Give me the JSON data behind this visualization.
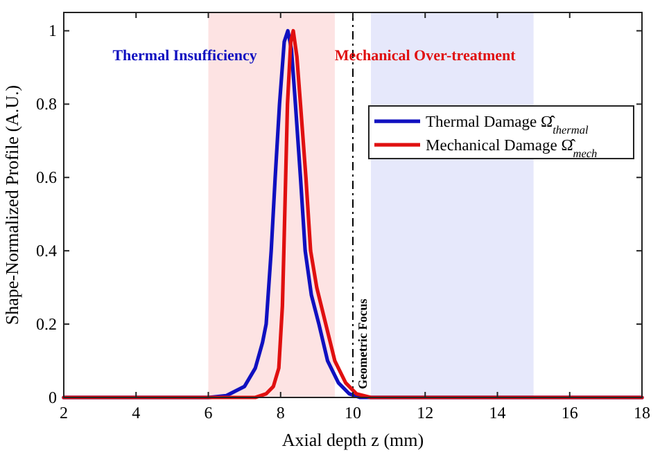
{
  "chart_data": {
    "type": "line",
    "xlabel": "Axial depth z (mm)",
    "ylabel": "Shape-Normalized Profile (A.U.)",
    "xlim": [
      2,
      18
    ],
    "ylim": [
      0,
      1.05
    ],
    "xticks": [
      2,
      4,
      6,
      8,
      10,
      12,
      14,
      16,
      18
    ],
    "yticks": [
      0,
      0.2,
      0.4,
      0.6,
      0.8,
      1
    ],
    "grid": false,
    "legend": "top right",
    "line_style": "solid",
    "marker": "none",
    "x": [
      2,
      6,
      6.5,
      7,
      7.3,
      7.5,
      7.6,
      7.74,
      7.85,
      7.97,
      8.1,
      8.2,
      8.3,
      8.41,
      8.55,
      8.68,
      8.85,
      9.06,
      9.3,
      9.6,
      9.9,
      10.2,
      18
    ],
    "series": [
      {
        "name": "Thermal Damage Ω̂$_{thermal}$",
        "color": "#1010c0",
        "values": [
          0,
          0,
          0.005,
          0.03,
          0.08,
          0.15,
          0.2,
          0.4,
          0.6,
          0.8,
          0.97,
          1,
          0.95,
          0.8,
          0.6,
          0.4,
          0.28,
          0.2,
          0.1,
          0.04,
          0.01,
          0,
          0
        ]
      },
      {
        "name": "Mechanical Damage Ω̂$_{mech}$",
        "color": "#e01010",
        "x": [
          2,
          7.3,
          7.6,
          7.8,
          7.95,
          8.05,
          8.09,
          8.14,
          8.19,
          8.28,
          8.35,
          8.45,
          8.55,
          8.7,
          8.83,
          9,
          9.25,
          9.5,
          9.8,
          10.1,
          10.5,
          18
        ],
        "values": [
          0,
          0,
          0.01,
          0.03,
          0.08,
          0.25,
          0.4,
          0.6,
          0.8,
          0.97,
          1,
          0.93,
          0.8,
          0.6,
          0.4,
          0.3,
          0.2,
          0.1,
          0.04,
          0.01,
          0,
          0
        ]
      }
    ],
    "bands": [
      {
        "axis": "x",
        "from": 6,
        "to": 9.5,
        "color": "#fde3e3"
      },
      {
        "axis": "x",
        "from": 10.5,
        "to": 15,
        "color": "#e6e8fb"
      }
    ],
    "ref_lines": [
      {
        "axis": "x",
        "value": 10,
        "label": "Geometric Focus",
        "color": "#000000",
        "line_style": "dashdot"
      }
    ],
    "annotations": [
      "Thermal Insufficiency",
      "Mechanical Over-treatment"
    ]
  }
}
